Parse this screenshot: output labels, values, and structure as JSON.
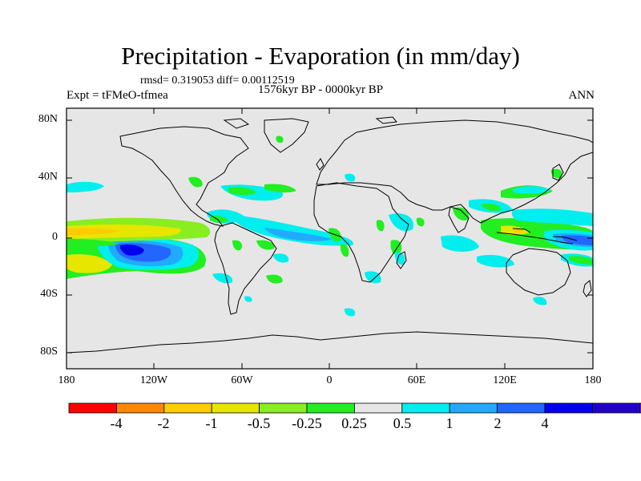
{
  "title": "Precipitation - Evaporation (in mm/day)",
  "stats_line": "rmsd= 0.319053 diff= 0.00112519",
  "period_line": "1576kyr BP - 0000kyr BP",
  "experiment": "Expt = tFMeO-tfmea",
  "season": "ANN",
  "lat_ticks": [
    "80N",
    "40N",
    "0",
    "40S",
    "80S"
  ],
  "lon_ticks": [
    "180",
    "120W",
    "60W",
    "0",
    "60E",
    "120E",
    "180"
  ],
  "colorbar": {
    "colors": [
      "#ff0000",
      "#ff8800",
      "#ffcc00",
      "#e6e600",
      "#88ee22",
      "#22ee22",
      "#e6e6e6",
      "#00eeee",
      "#22aaff",
      "#2266ff",
      "#0000ee",
      "#2200cc",
      "#8822ee"
    ],
    "labels": [
      "-4",
      "-2",
      "-1",
      "-0.5",
      "-0.25",
      "0.25",
      "0.5",
      "1",
      "2",
      "4"
    ]
  },
  "colors": {
    "land_background": "#e6e6e6",
    "coastline": "#000000"
  }
}
